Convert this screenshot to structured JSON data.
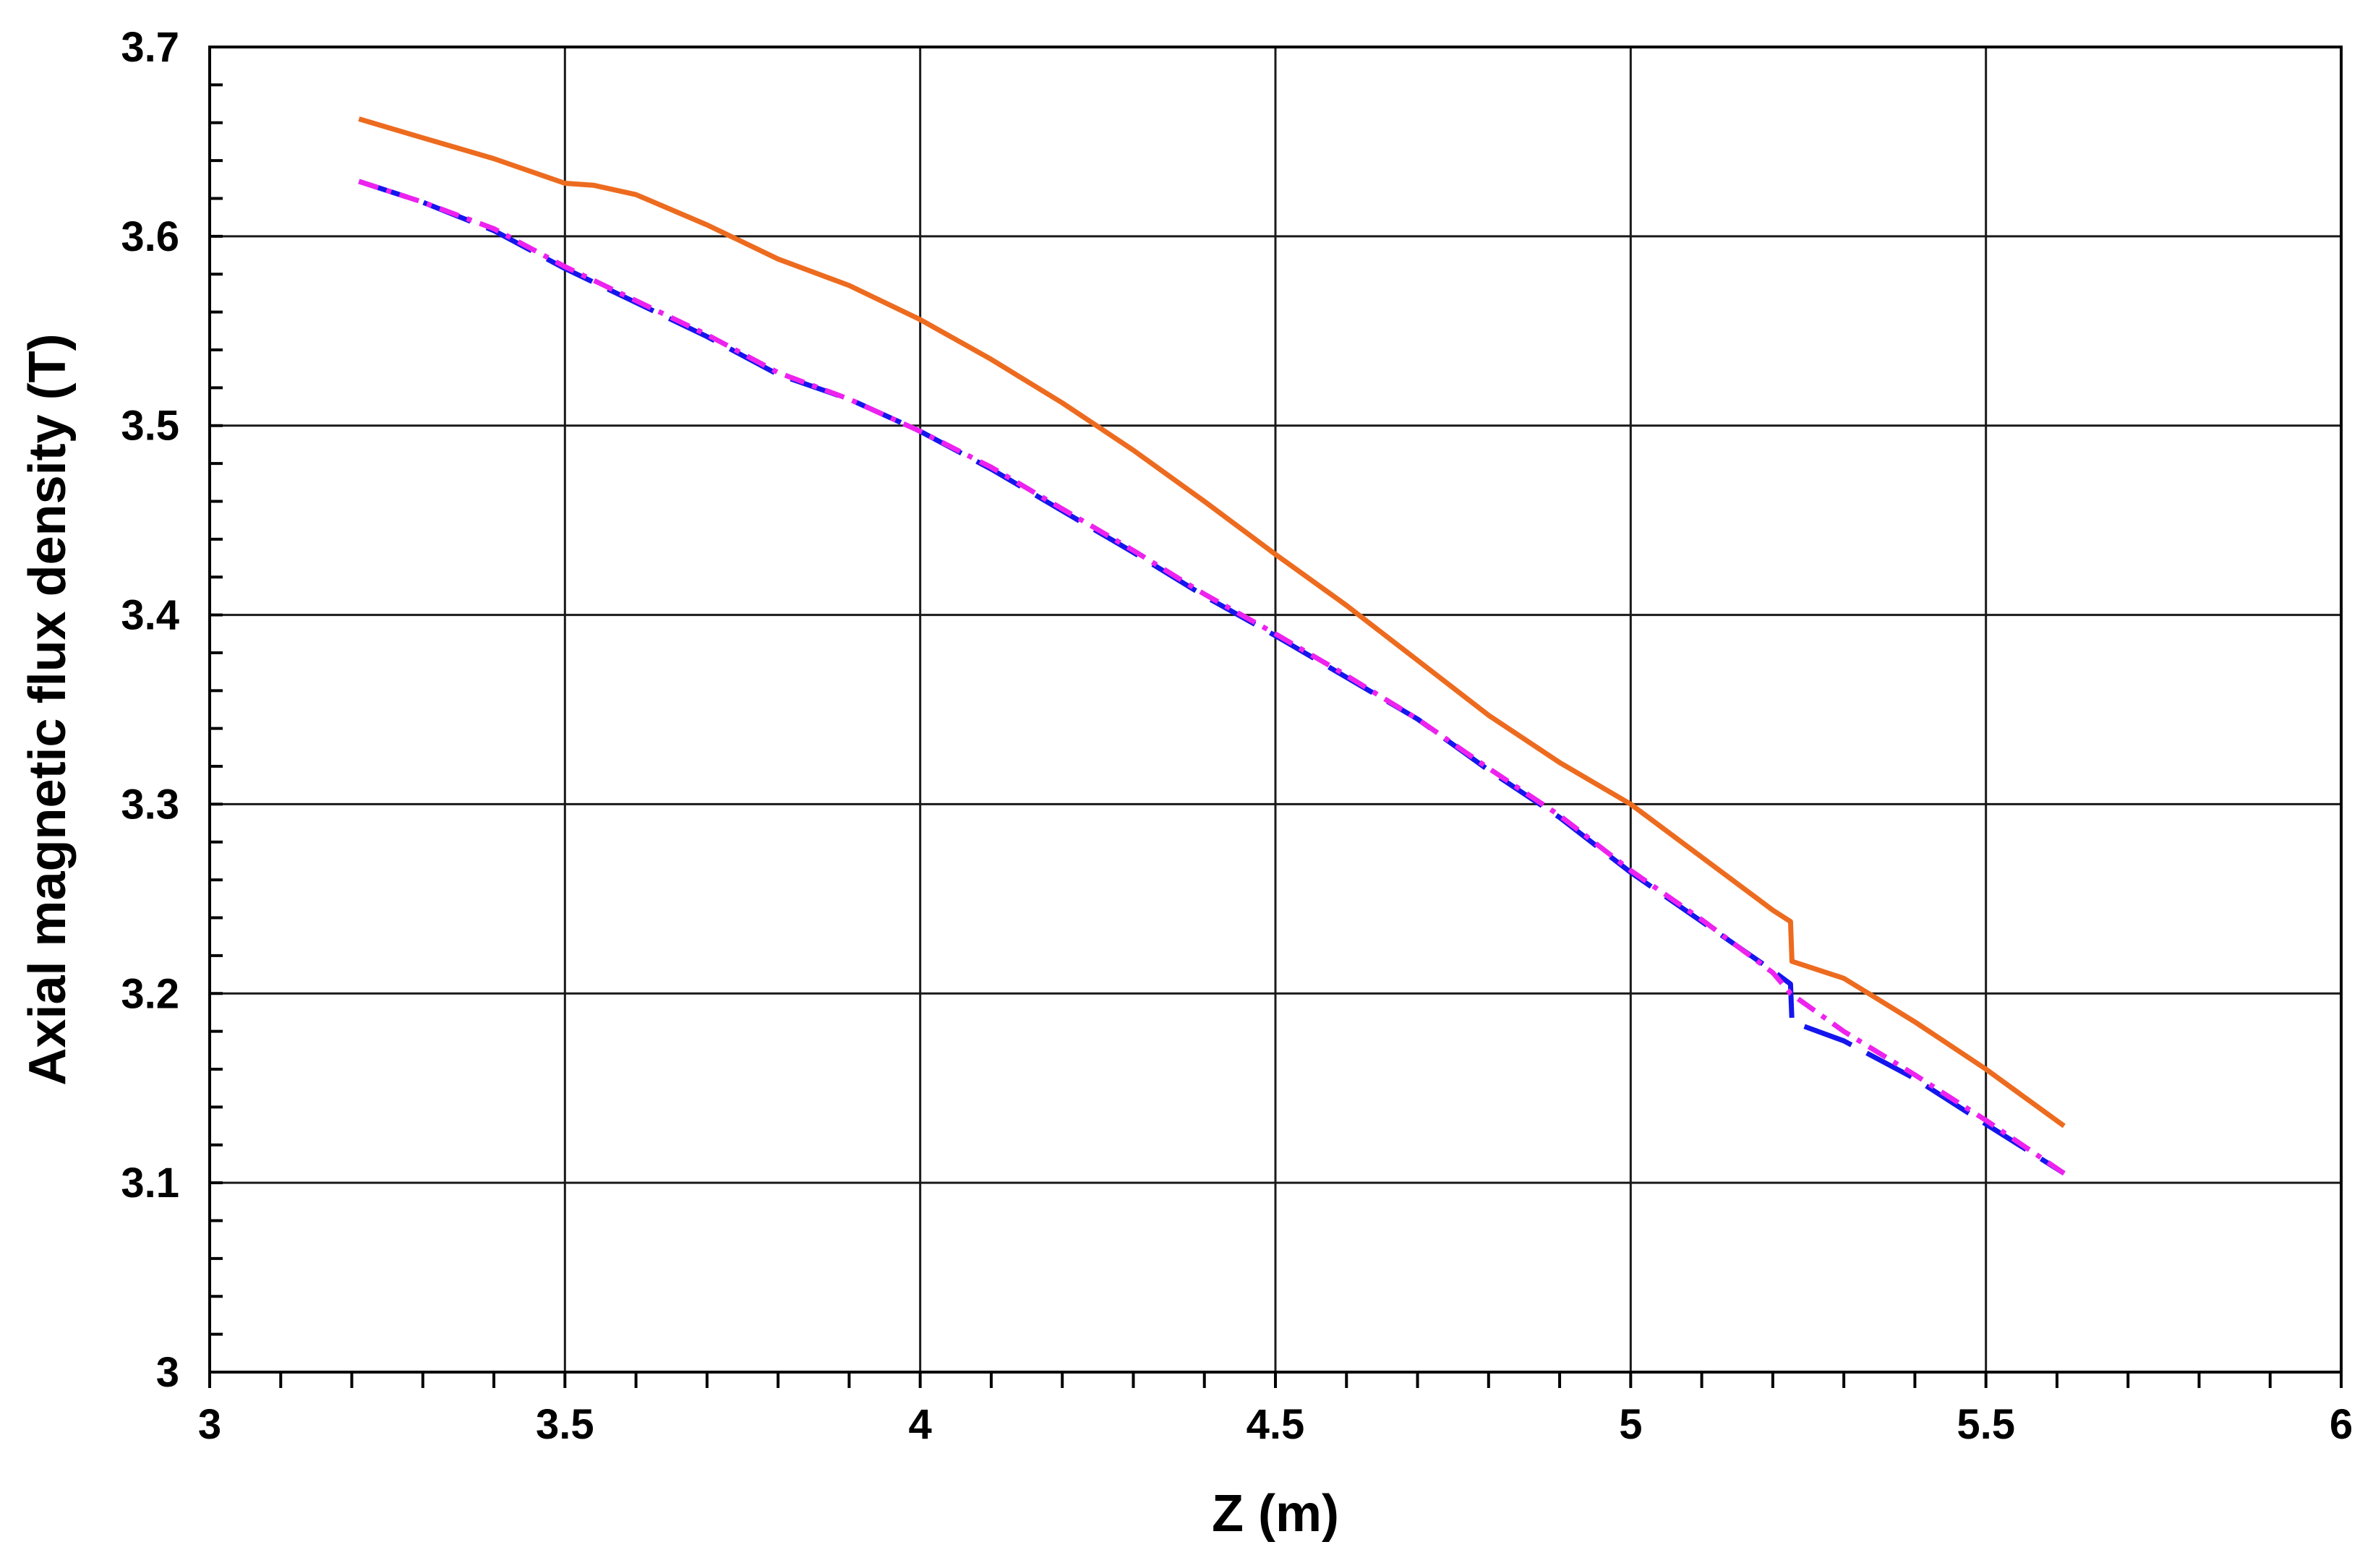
{
  "chart_data": {
    "type": "line",
    "title": "",
    "xlabel": "Z (m)",
    "ylabel": "Axial magnetic flux density (T)",
    "xlim": [
      3,
      6
    ],
    "ylim": [
      3,
      3.7
    ],
    "xticks": [
      3,
      3.5,
      4,
      4.5,
      5,
      5.5,
      6
    ],
    "xtick_labels": [
      "3",
      "3.5",
      "4",
      "4.5",
      "5",
      "5.5",
      "6"
    ],
    "yticks": [
      3,
      3.1,
      3.2,
      3.3,
      3.4,
      3.5,
      3.6,
      3.7
    ],
    "ytick_labels": [
      "3",
      "3.1",
      "3.2",
      "3.3",
      "3.4",
      "3.5",
      "3.6",
      "3.7"
    ],
    "grid": true,
    "legend": "none",
    "series": [
      {
        "color": "#ED6B1F",
        "style": "solid",
        "x": [
          3.21,
          3.3,
          3.4,
          3.5,
          3.54,
          3.6,
          3.7,
          3.8,
          3.9,
          4.0,
          4.1,
          4.2,
          4.3,
          4.4,
          4.5,
          4.6,
          4.7,
          4.8,
          4.9,
          5.0,
          5.1,
          5.2,
          5.225,
          5.227,
          5.3,
          5.335,
          5.4,
          5.5,
          5.61
        ],
        "y": [
          3.662,
          3.652,
          3.641,
          3.628,
          3.627,
          3.622,
          3.606,
          3.588,
          3.574,
          3.556,
          3.535,
          3.512,
          3.487,
          3.46,
          3.432,
          3.405,
          3.376,
          3.347,
          3.322,
          3.3,
          3.272,
          3.244,
          3.238,
          3.217,
          3.208,
          3.2,
          3.185,
          3.16,
          3.13
        ]
      },
      {
        "color": "#1515EE",
        "style": "dashed",
        "x": [
          3.21,
          3.3,
          3.4,
          3.5,
          3.6,
          3.7,
          3.8,
          3.9,
          4.0,
          4.1,
          4.2,
          4.3,
          4.4,
          4.5,
          4.6,
          4.7,
          4.8,
          4.9,
          5.0,
          5.1,
          5.2,
          5.225,
          5.227,
          5.3,
          5.4,
          5.5,
          5.61
        ],
        "y": [
          3.629,
          3.618,
          3.603,
          3.583,
          3.565,
          3.547,
          3.527,
          3.514,
          3.497,
          3.477,
          3.455,
          3.433,
          3.41,
          3.389,
          3.367,
          3.345,
          3.318,
          3.293,
          3.264,
          3.238,
          3.212,
          3.205,
          3.185,
          3.175,
          3.155,
          3.131,
          3.105
        ]
      },
      {
        "color": "#EE22EE",
        "style": "dash-dot",
        "x": [
          3.21,
          3.3,
          3.4,
          3.5,
          3.6,
          3.7,
          3.8,
          3.9,
          4.0,
          4.1,
          4.2,
          4.3,
          4.4,
          4.5,
          4.6,
          4.7,
          4.8,
          4.9,
          5.0,
          5.1,
          5.2,
          5.225,
          5.3,
          5.4,
          5.5,
          5.61
        ],
        "y": [
          3.629,
          3.618,
          3.604,
          3.584,
          3.566,
          3.548,
          3.528,
          3.514,
          3.497,
          3.478,
          3.456,
          3.434,
          3.411,
          3.39,
          3.368,
          3.345,
          3.319,
          3.294,
          3.265,
          3.239,
          3.211,
          3.2,
          3.18,
          3.157,
          3.133,
          3.105
        ]
      }
    ]
  }
}
